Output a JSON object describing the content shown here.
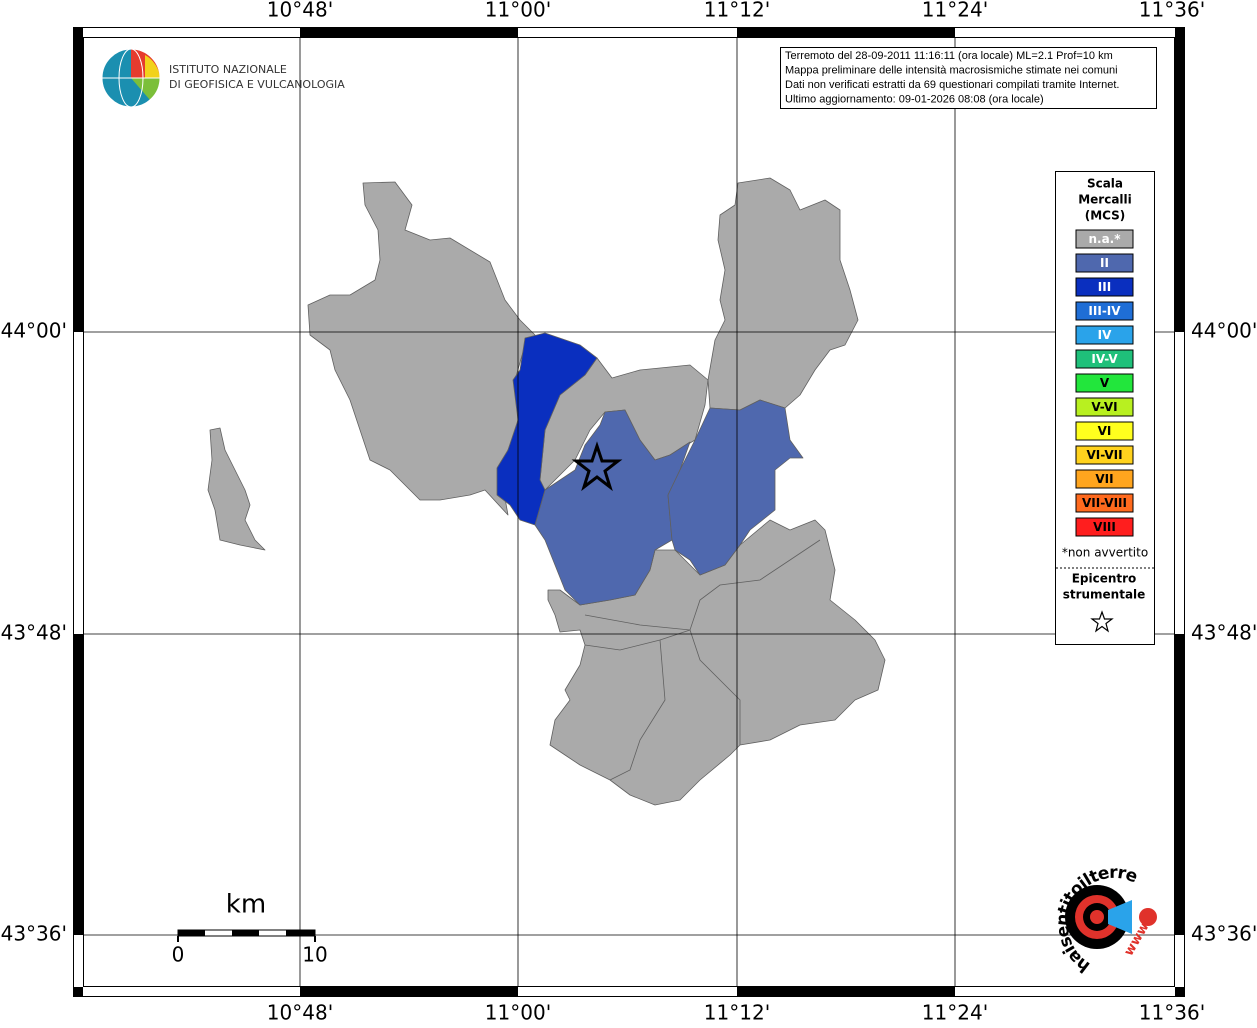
{
  "logo": {
    "line1": "ISTITUTO NAZIONALE",
    "line2": "DI GEOFISICA E VULCANOLOGIA"
  },
  "info": {
    "lines": [
      "Terremoto del 28-09-2011 11:16:11 (ora locale) ML=2.1 Prof=10 km",
      "Mappa preliminare delle intensità macrosismiche stimate nei comuni",
      "Dati non verificati estratti da 69 questionari compilati tramite Internet.",
      "Ultimo aggiornamento: 09-01-2026 08:08 (ora locale)"
    ]
  },
  "lon_labels": [
    "10°48'",
    "11°00'",
    "11°12'",
    "11°24'",
    "11°36'"
  ],
  "lat_labels": [
    "44°00'",
    "43°48'",
    "43°36'"
  ],
  "legend": {
    "title": [
      "Scala",
      "Mercalli",
      "(MCS)"
    ],
    "items": [
      {
        "label": "n.a.*",
        "color": "#aaaaaa",
        "text_color": "#ffffff"
      },
      {
        "label": "II",
        "color": "#4f68ae",
        "text_color": "#ffffff"
      },
      {
        "label": "III",
        "color": "#0a2fbf",
        "text_color": "#ffffff"
      },
      {
        "label": "III-IV",
        "color": "#1f6ed6",
        "text_color": "#ffffff"
      },
      {
        "label": "IV",
        "color": "#2aa3ea",
        "text_color": "#ffffff"
      },
      {
        "label": "IV-V",
        "color": "#1fc07a",
        "text_color": "#ffffff"
      },
      {
        "label": "V",
        "color": "#22e63c",
        "text_color": "#000000"
      },
      {
        "label": "V-VI",
        "color": "#b8f020",
        "text_color": "#000000"
      },
      {
        "label": "VI",
        "color": "#ffff1e",
        "text_color": "#000000"
      },
      {
        "label": "VI-VII",
        "color": "#ffd21e",
        "text_color": "#000000"
      },
      {
        "label": "VII",
        "color": "#ffa51e",
        "text_color": "#000000"
      },
      {
        "label": "VII-VIII",
        "color": "#ff6a1e",
        "text_color": "#000000"
      },
      {
        "label": "VIII",
        "color": "#ff1e1e",
        "text_color": "#000000"
      }
    ],
    "note": "*non avvertito",
    "epicenter": [
      "Epicentro",
      "strumentale"
    ]
  },
  "scale_bar": {
    "unit": "km",
    "start": "0",
    "end": "10"
  },
  "brand": {
    "name": "haisentitoilterremoto.it",
    "www": "www."
  }
}
